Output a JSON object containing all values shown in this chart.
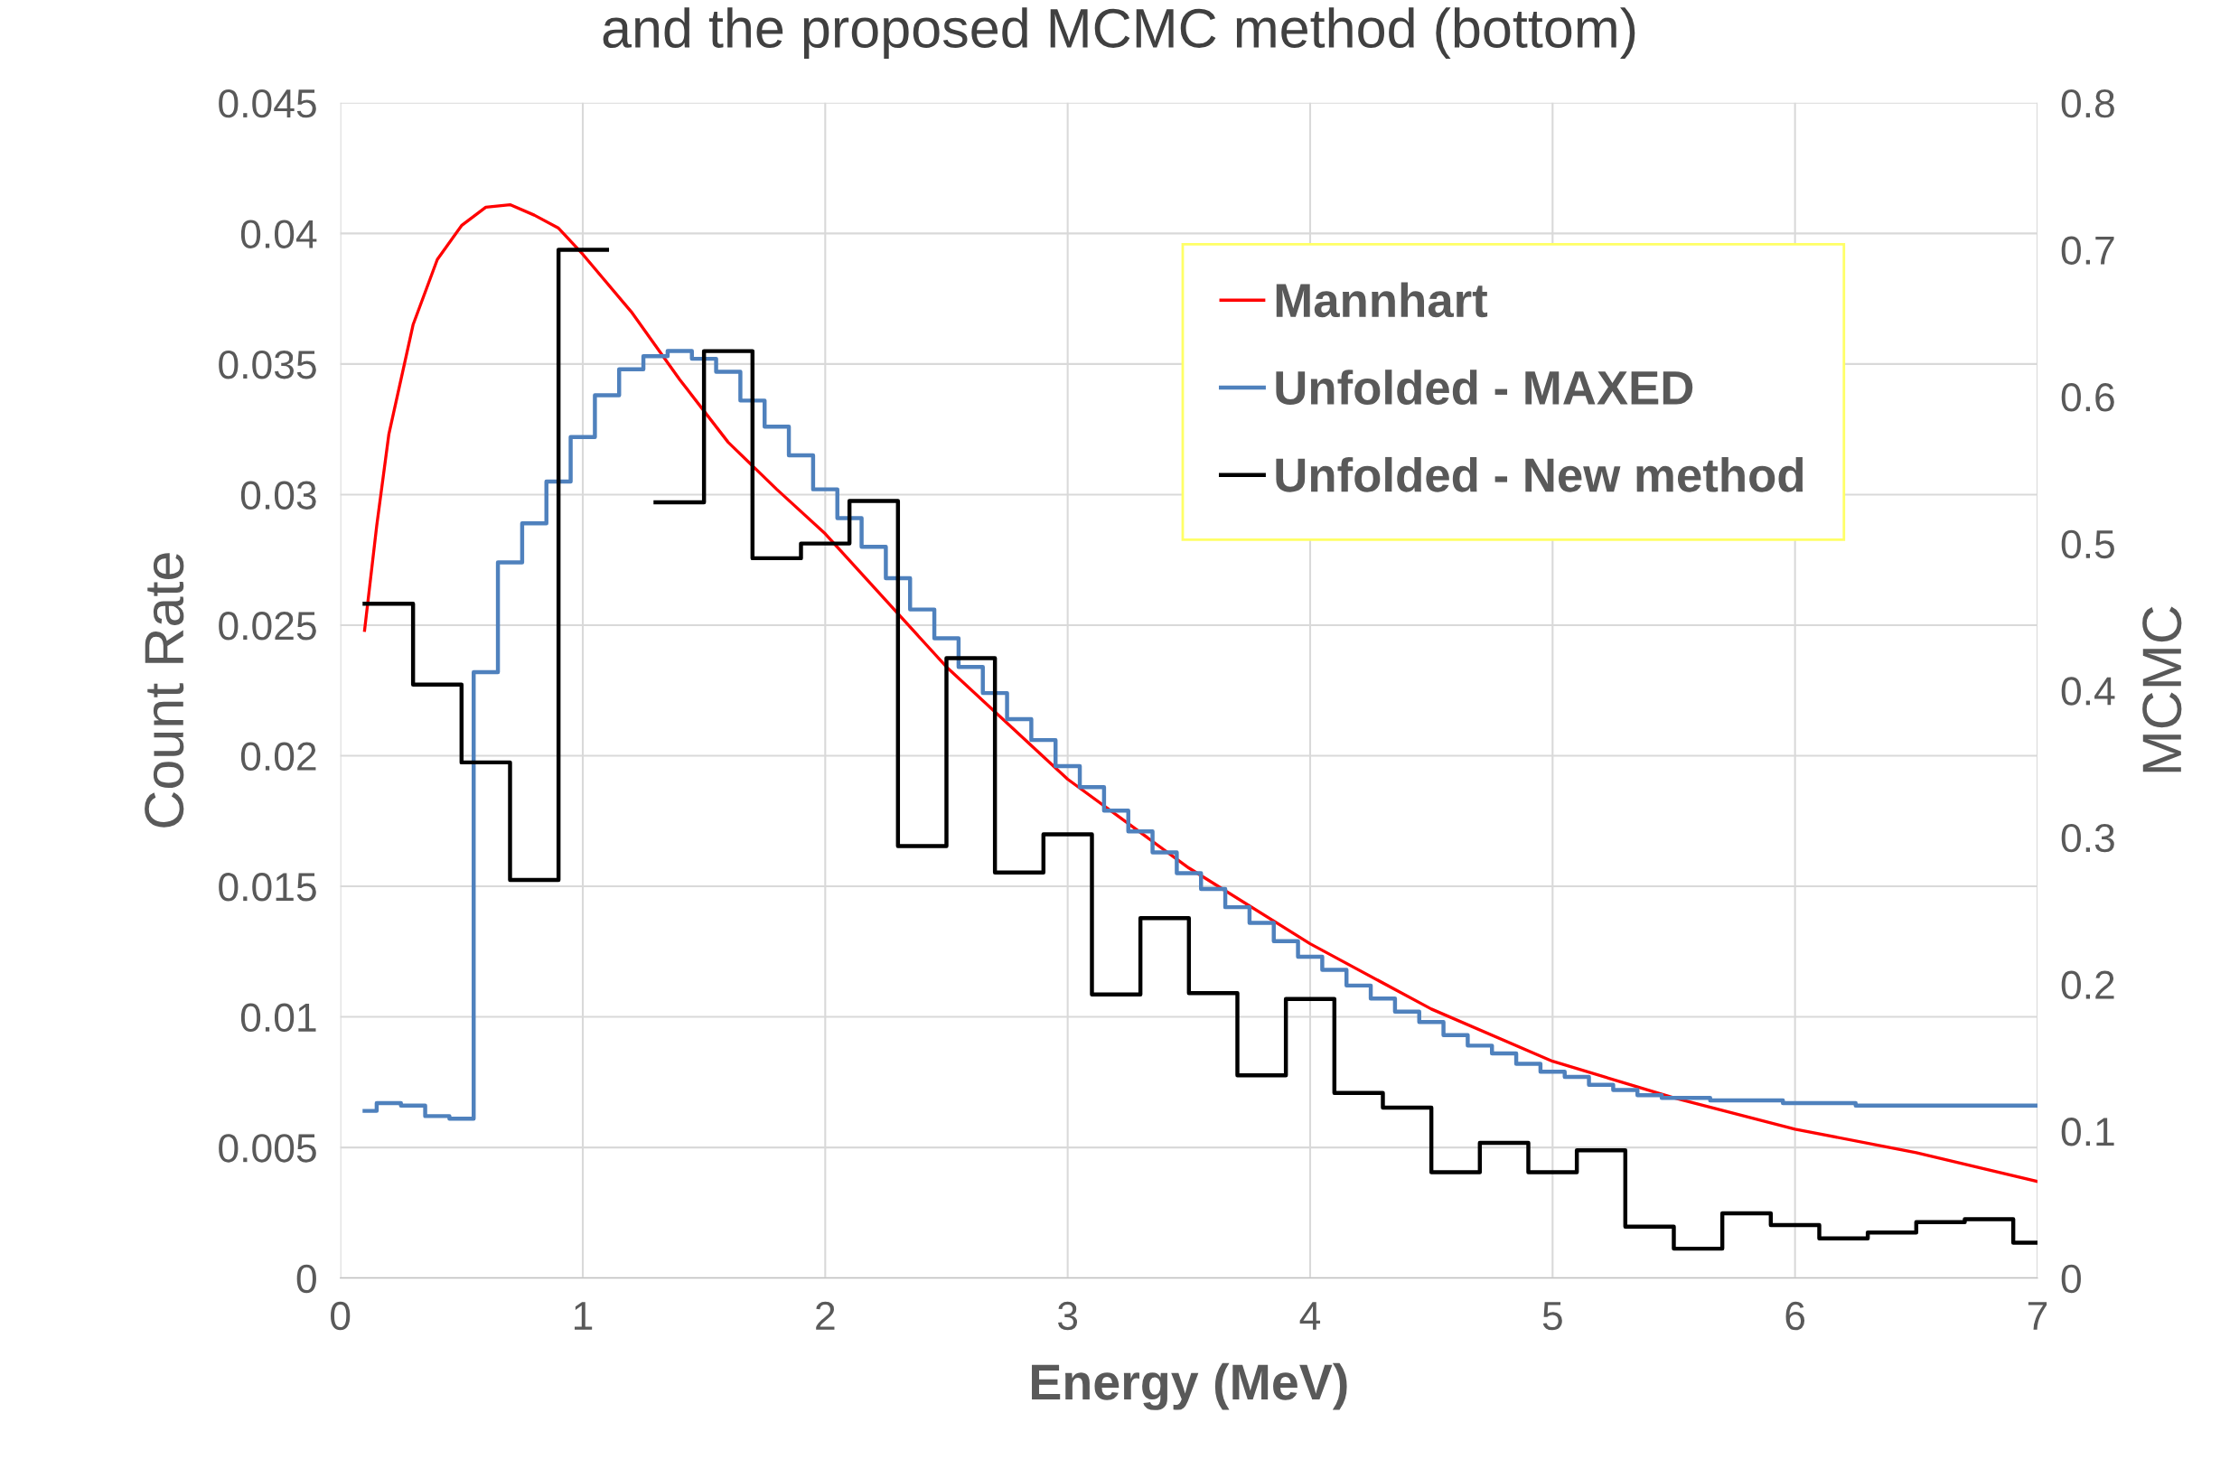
{
  "chart_data": {
    "type": "line",
    "title": "and the proposed MCMC method (bottom)",
    "xlabel": "Energy (MeV)",
    "ylabel": "Count Rate",
    "y2label": "MCMC",
    "xlim": [
      0,
      7
    ],
    "xticks": [
      0,
      1,
      2,
      3,
      4,
      5,
      6,
      7
    ],
    "ylim": [
      0,
      0.045
    ],
    "yticks": [
      0,
      0.005,
      0.01,
      0.015,
      0.02,
      0.025,
      0.03,
      0.035,
      0.04,
      0.045
    ],
    "y2lim": [
      0,
      0.8
    ],
    "y2ticks": [
      0,
      0.1,
      0.2,
      0.3,
      0.4,
      0.5,
      0.6,
      0.7,
      0.8
    ],
    "grid": true,
    "legend": "top right",
    "marker": "none",
    "line_style": "solid",
    "series": [
      {
        "name": "Mannhart",
        "color": "#ff0000",
        "x": [
          0.1,
          0.15,
          0.2,
          0.3,
          0.4,
          0.5,
          0.6,
          0.7,
          0.8,
          0.9,
          1.0,
          1.2,
          1.4,
          1.6,
          1.8,
          2.0,
          2.5,
          3.0,
          3.5,
          4.0,
          4.5,
          5.0,
          5.5,
          6.0,
          6.5,
          7.0
        ],
        "values": [
          0.0248,
          0.0288,
          0.0323,
          0.0365,
          0.039,
          0.0403,
          0.041,
          0.0411,
          0.0407,
          0.0402,
          0.0392,
          0.037,
          0.0344,
          0.032,
          0.0302,
          0.0285,
          0.0234,
          0.0191,
          0.0157,
          0.0128,
          0.0103,
          0.0083,
          0.0069,
          0.0057,
          0.0048,
          0.0037
        ]
      },
      {
        "name": "Unfolded - MAXED",
        "color": "#4f81bd",
        "type": "step",
        "x": [
          0.1,
          0.15,
          0.25,
          0.35,
          0.45,
          0.55,
          0.65,
          0.75,
          0.85,
          0.95,
          1.05,
          1.15,
          1.25,
          1.35,
          1.45,
          1.55,
          1.65,
          1.75,
          1.85,
          1.95,
          2.05,
          2.15,
          2.25,
          2.35,
          2.45,
          2.55,
          2.65,
          2.75,
          2.85,
          2.95,
          3.05,
          3.15,
          3.25,
          3.35,
          3.45,
          3.55,
          3.65,
          3.75,
          3.85,
          3.95,
          4.05,
          4.15,
          4.25,
          4.35,
          4.45,
          4.55,
          4.65,
          4.75,
          4.85,
          4.95,
          5.05,
          5.15,
          5.25,
          5.35,
          5.45,
          5.55,
          5.65,
          5.75,
          5.95,
          6.25,
          6.5,
          7.0
        ],
        "values": [
          0.0064,
          0.0067,
          0.0066,
          0.0062,
          0.0061,
          0.0232,
          0.0274,
          0.0289,
          0.0305,
          0.0322,
          0.0338,
          0.0348,
          0.0353,
          0.0355,
          0.0352,
          0.0347,
          0.0336,
          0.0326,
          0.0315,
          0.0302,
          0.0291,
          0.028,
          0.0268,
          0.0256,
          0.0245,
          0.0234,
          0.0224,
          0.0214,
          0.0206,
          0.0196,
          0.0188,
          0.0179,
          0.0171,
          0.0163,
          0.0155,
          0.0149,
          0.0142,
          0.0136,
          0.0129,
          0.0123,
          0.0118,
          0.0112,
          0.0107,
          0.0102,
          0.0098,
          0.0093,
          0.0089,
          0.0086,
          0.0082,
          0.0079,
          0.0077,
          0.0074,
          0.0072,
          0.007,
          0.0069,
          0.0069,
          0.0068,
          0.0068,
          0.0067,
          0.0066,
          0.0066,
          0.0066
        ]
      },
      {
        "name": "Unfolded - New method",
        "color": "#000000",
        "type": "step",
        "axis": "y2",
        "x": [
          0.1,
          0.3,
          0.5,
          0.7,
          0.9,
          1.1,
          1.3,
          1.5,
          1.7,
          1.9,
          2.1,
          2.3,
          2.5,
          2.7,
          2.9,
          3.1,
          3.3,
          3.5,
          3.7,
          3.9,
          4.1,
          4.3,
          4.5,
          4.7,
          4.9,
          5.1,
          5.3,
          5.5,
          5.7,
          5.9,
          6.1,
          6.3,
          6.5,
          6.7,
          6.9,
          7.0
        ],
        "values": [
          0.459,
          0.404,
          0.351,
          0.271,
          0.7,
          null,
          0.528,
          0.631,
          0.49,
          0.5,
          0.529,
          0.294,
          0.422,
          0.276,
          0.302,
          0.193,
          0.245,
          0.194,
          0.138,
          0.19,
          0.126,
          0.116,
          0.072,
          0.092,
          0.072,
          0.087,
          0.035,
          0.02,
          0.044,
          0.036,
          0.027,
          0.031,
          0.038,
          0.04,
          0.024,
          0.024
        ]
      }
    ]
  }
}
